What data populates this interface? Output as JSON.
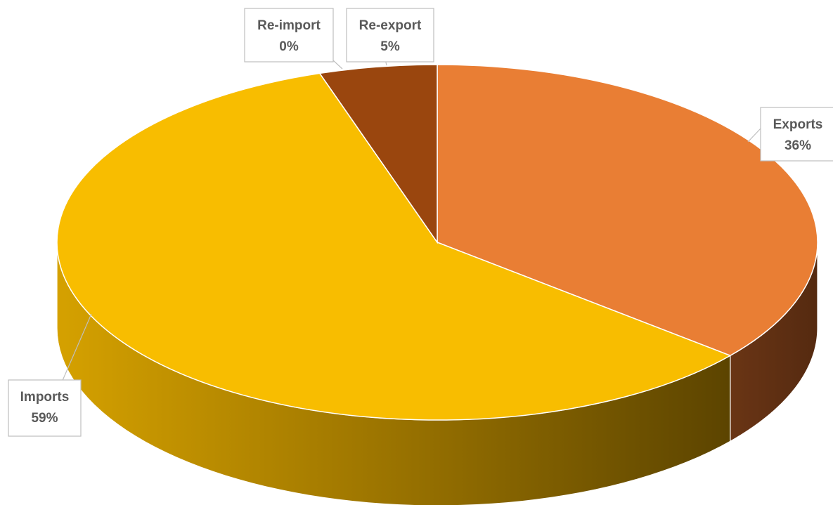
{
  "chart_data": {
    "type": "pie",
    "style": "3d",
    "categories": [
      "Exports",
      "Imports",
      "Re-import",
      "Re-export"
    ],
    "values": [
      36,
      59,
      0,
      5
    ],
    "labels": [
      "36%",
      "59%",
      "0%",
      "5%"
    ],
    "colors": [
      "#E97E34",
      "#F8BD00",
      "#F8BD00",
      "#9A460E"
    ],
    "title": "",
    "legend": "none"
  }
}
